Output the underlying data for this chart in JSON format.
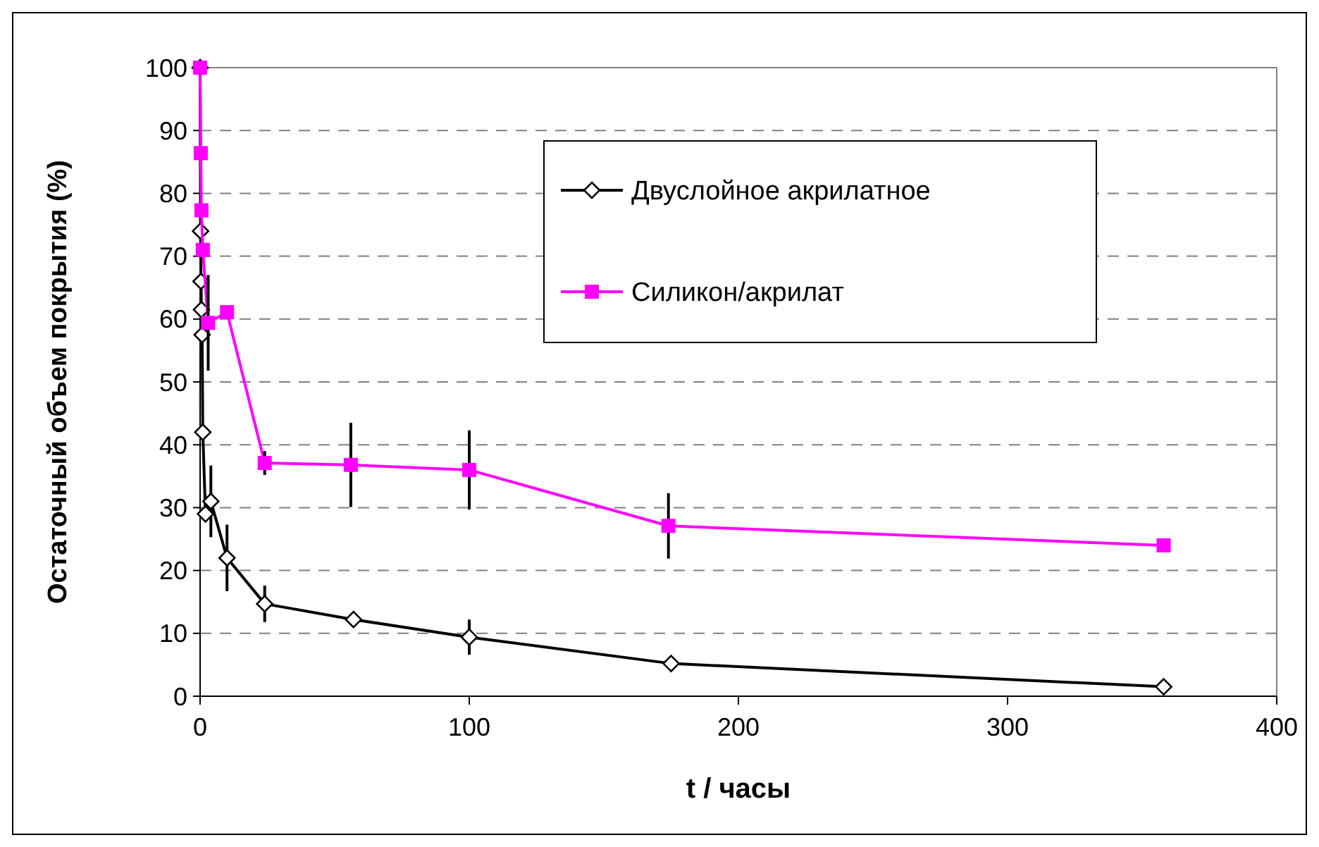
{
  "chart_data": {
    "type": "line",
    "xlabel": "t / часы",
    "ylabel": "Остаточный объем покрытия (%)",
    "xlim": [
      0,
      400
    ],
    "xticks": [
      0,
      100,
      200,
      300,
      400
    ],
    "ylim": [
      0,
      100
    ],
    "yticks": [
      0,
      10,
      20,
      30,
      40,
      50,
      60,
      70,
      80,
      90,
      100
    ],
    "grid": "y",
    "legend": "top right",
    "line_style": "solid",
    "series": [
      {
        "name": "Двуслойное акрилатное",
        "color": "#000000",
        "marker": "diamond",
        "x": [
          0,
          0.17,
          0.33,
          0.5,
          0.75,
          1,
          2,
          4,
          10,
          24,
          57,
          100,
          175,
          358
        ],
        "values": [
          100,
          74,
          66,
          61.5,
          57.5,
          42,
          29,
          31,
          22,
          14.7,
          12.2,
          9.4,
          5.2,
          1.5
        ],
        "errors": [
          null,
          null,
          null,
          null,
          null,
          null,
          null,
          5.7,
          5.3,
          2.9,
          null,
          2.8,
          null,
          null
        ]
      },
      {
        "name": "Силикон/акрилат",
        "color": "#ff00ff",
        "marker": "square",
        "x": [
          0,
          0.25,
          0.5,
          1,
          3,
          10,
          24,
          56,
          100,
          174,
          358
        ],
        "values": [
          100,
          86.4,
          77.3,
          71,
          59.4,
          61.1,
          37.1,
          36.8,
          36,
          27.1,
          24
        ],
        "errors": [
          null,
          null,
          null,
          null,
          7.6,
          null,
          1.9,
          6.7,
          6.3,
          5.2,
          null
        ]
      }
    ]
  }
}
